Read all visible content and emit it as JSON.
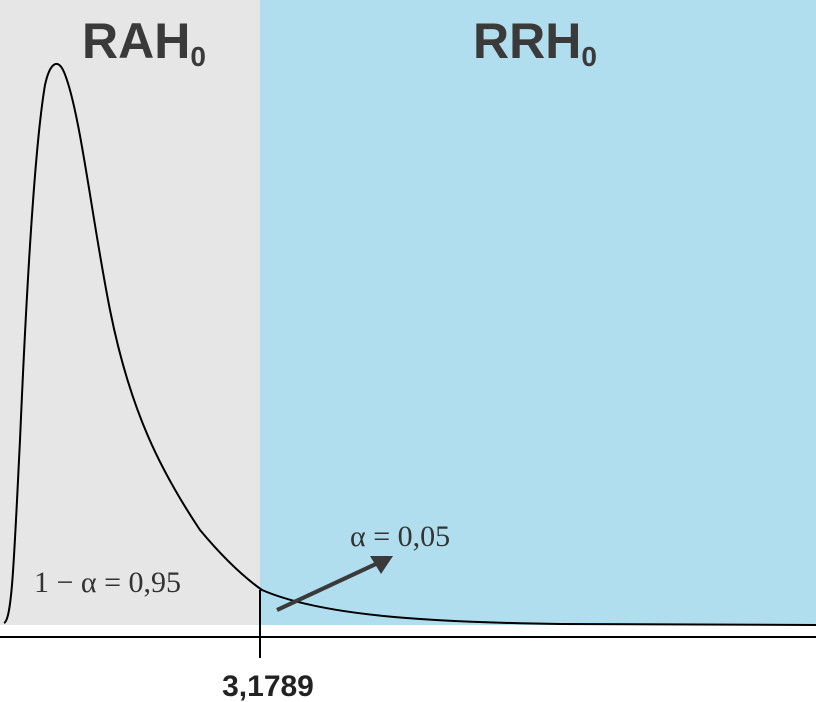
{
  "regions": {
    "acceptance": {
      "label": "RAH",
      "subscript": "0",
      "color": "#e6e6e6"
    },
    "rejection": {
      "label": "RRH",
      "subscript": "0",
      "color": "#b0deee"
    }
  },
  "annotations": {
    "confidence": "1 − α = 0,95",
    "significance": "α = 0,05"
  },
  "critical_value": "3,1789",
  "colors": {
    "curve": "#000000",
    "arrow": "#3a3a3a",
    "axis": "#000000"
  }
}
